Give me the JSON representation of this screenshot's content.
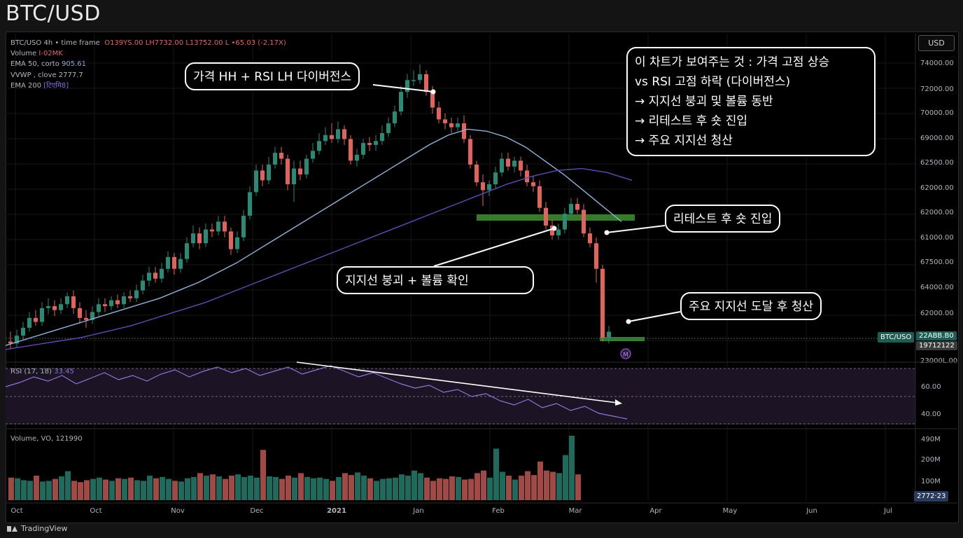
{
  "page_title": "BTC/USD",
  "legend": {
    "symbol_line": "BTC/USO  4h  • time frame",
    "ohlc": "O139YS.00  LH7732.00  L13752.00  L •65.03 (-2.17X)",
    "volume_name": "Volume",
    "volume_val": "I-02MK",
    "ema50_name": "EMA 50, corto",
    "ema50_val": "905.61",
    "vwap_name": "VVWP , clove",
    "vwap_val": "2777.7",
    "ema200_name": "EMA 200",
    "ema200_val": "[टिएमि8]"
  },
  "currency_button": "USD",
  "price_tag": {
    "symbol": "BTC/USO",
    "price": "22ABB.B0",
    "time": "19712122"
  },
  "rsi_panel": {
    "label": "RSI (17, 18)",
    "value": "33.45"
  },
  "volume_panel": {
    "label": "Volume, VO, 121990",
    "tag": "2772·23"
  },
  "marker": "M",
  "callouts": {
    "divergence": "가격 HH + RSI LH 다이버전스",
    "summary_lines": [
      "이 차트가 보여주는 것 : 가격 고점 상승",
      "vs RSI 고점 하락 (다이버전스)",
      "→ 지지선 붕괴 및 볼륨 동반",
      "→ 리테스트 후 숏 진입",
      "→ 주요 지지선 청산"
    ],
    "retest": "리테스트 후 숏 진입",
    "breakdown": "지지선 붕괴 + 볼륨 확인",
    "target": "주요 지지선 도달 후 청산"
  },
  "footer": {
    "brand": "TradingView"
  },
  "colors": {
    "up": "#2a8a73",
    "down": "#e0635d",
    "ema_light": "#8fb3d9",
    "ema_dark": "#5a4fb0",
    "rsi": "#8a78d8",
    "support": "#3f8f33"
  },
  "chart_data": {
    "type": "candlestick",
    "title": "BTC/USD",
    "x_tick_labels": [
      "Oct",
      "Oct",
      "Nov",
      "Dec",
      "2021",
      "Jan",
      "Feb",
      "Mar",
      "Apr",
      "May",
      "Jun",
      "Jul"
    ],
    "price_axis_labels": [
      "74000.00",
      "72000.00",
      "70000.00",
      "69000.00",
      "62500.00",
      "62000.00",
      "62000.00",
      "61000.00",
      "67500.00",
      "64000.00",
      "62000.00",
      "64000.00",
      "23000L.00"
    ],
    "rsi_axis_labels": [
      "60.00",
      "40.00"
    ],
    "volume_axis_labels": [
      "490M",
      "200M",
      "100M"
    ],
    "candles_approx_price": [
      [
        59800,
        59700,
        60300,
        59400
      ],
      [
        59700,
        60100,
        60400,
        59500
      ],
      [
        60100,
        60500,
        60800,
        59900
      ],
      [
        60500,
        61000,
        61300,
        60300
      ],
      [
        61000,
        60800,
        61400,
        60600
      ],
      [
        60800,
        61500,
        61800,
        60600
      ],
      [
        61500,
        61600,
        62000,
        61200
      ],
      [
        61600,
        61400,
        61900,
        61100
      ],
      [
        61400,
        61700,
        62000,
        61200
      ],
      [
        61700,
        62100,
        62300,
        61500
      ],
      [
        62100,
        61500,
        62400,
        61200
      ],
      [
        61500,
        61000,
        61800,
        60700
      ],
      [
        61000,
        60900,
        61400,
        60500
      ],
      [
        60900,
        61300,
        61600,
        60700
      ],
      [
        61300,
        61700,
        62000,
        61100
      ],
      [
        61700,
        61600,
        62000,
        61300
      ],
      [
        61600,
        61900,
        62100,
        61400
      ],
      [
        61900,
        61700,
        62200,
        61500
      ],
      [
        61700,
        62100,
        62300,
        61500
      ],
      [
        62100,
        62000,
        62400,
        61800
      ],
      [
        62000,
        62400,
        62700,
        61800
      ],
      [
        62400,
        62900,
        63200,
        62200
      ],
      [
        62900,
        63300,
        63600,
        62600
      ],
      [
        63300,
        63000,
        63600,
        62800
      ],
      [
        63000,
        63500,
        63800,
        62800
      ],
      [
        63500,
        64100,
        64400,
        63300
      ],
      [
        64100,
        63500,
        64300,
        63200
      ],
      [
        63500,
        64000,
        64300,
        63300
      ],
      [
        64000,
        64800,
        65100,
        63800
      ],
      [
        64800,
        65300,
        65700,
        64600
      ],
      [
        65300,
        64800,
        65600,
        64500
      ],
      [
        64800,
        65500,
        65800,
        64600
      ],
      [
        65500,
        65400,
        65800,
        65100
      ],
      [
        65400,
        65900,
        66200,
        65200
      ],
      [
        65900,
        65400,
        66200,
        65100
      ],
      [
        65400,
        64500,
        65600,
        64200
      ],
      [
        64500,
        65100,
        65400,
        64300
      ],
      [
        65100,
        66200,
        66500,
        64900
      ],
      [
        66200,
        67400,
        67700,
        66000
      ],
      [
        67400,
        68500,
        68800,
        67200
      ],
      [
        68500,
        68000,
        68800,
        67700
      ],
      [
        68000,
        68800,
        69200,
        67800
      ],
      [
        68800,
        69400,
        69700,
        68600
      ],
      [
        69400,
        69100,
        69700,
        68800
      ],
      [
        69100,
        67800,
        69300,
        67500
      ],
      [
        67800,
        68600,
        69000,
        66900
      ],
      [
        68600,
        68300,
        69000,
        68000
      ],
      [
        68300,
        69100,
        69300,
        68100
      ],
      [
        69100,
        69500,
        69900,
        68900
      ],
      [
        69500,
        70000,
        70400,
        69300
      ],
      [
        70000,
        70300,
        70700,
        69800
      ],
      [
        70300,
        70100,
        70900,
        69900
      ],
      [
        70100,
        70600,
        71000,
        69900
      ],
      [
        70600,
        70100,
        70800,
        69800
      ],
      [
        70100,
        69000,
        70300,
        68800
      ],
      [
        69000,
        69300,
        69600,
        68700
      ],
      [
        69300,
        69900,
        70100,
        69100
      ],
      [
        69900,
        69800,
        70200,
        69500
      ],
      [
        69800,
        70000,
        70300,
        69500
      ],
      [
        70000,
        70400,
        70800,
        69800
      ],
      [
        70400,
        70900,
        71200,
        70200
      ],
      [
        70900,
        71500,
        71800,
        70700
      ],
      [
        71500,
        72500,
        72800,
        71300
      ],
      [
        72500,
        73100,
        73400,
        72200
      ],
      [
        73100,
        73100,
        73600,
        72800
      ],
      [
        73100,
        73400,
        73900,
        72900
      ],
      [
        73400,
        72500,
        73600,
        72300
      ],
      [
        72500,
        71700,
        72800,
        71400
      ],
      [
        71700,
        71100,
        72000,
        70900
      ],
      [
        71100,
        70900,
        71400,
        70600
      ],
      [
        70900,
        70700,
        71200,
        70400
      ],
      [
        70700,
        70900,
        71200,
        70500
      ],
      [
        70900,
        70100,
        71300,
        69900
      ],
      [
        70100,
        68800,
        70300,
        68600
      ],
      [
        68800,
        67900,
        69000,
        67700
      ],
      [
        67900,
        67500,
        68300,
        66700
      ],
      [
        67500,
        67800,
        68000,
        67200
      ],
      [
        67800,
        68400,
        68700,
        67600
      ],
      [
        68400,
        69100,
        69400,
        68200
      ],
      [
        69100,
        68700,
        69400,
        68500
      ],
      [
        68700,
        69000,
        69200,
        68400
      ],
      [
        69000,
        68500,
        69200,
        68200
      ],
      [
        68500,
        67900,
        68800,
        67700
      ],
      [
        67900,
        67700,
        68200,
        67400
      ],
      [
        67700,
        66600,
        68000,
        66400
      ],
      [
        66600,
        65700,
        66900,
        65500
      ],
      [
        65700,
        65200,
        66000,
        65000
      ],
      [
        65200,
        65500,
        65800,
        65000
      ],
      [
        65500,
        66300,
        66600,
        65300
      ],
      [
        66300,
        66800,
        67100,
        66100
      ],
      [
        66800,
        66500,
        67100,
        66300
      ],
      [
        66500,
        65300,
        66800,
        65100
      ],
      [
        65300,
        64800,
        65600,
        64600
      ],
      [
        64800,
        63500,
        65100,
        62800
      ],
      [
        63500,
        60000,
        63700,
        59800
      ],
      [
        60000,
        60300,
        60600,
        59700
      ]
    ],
    "ema_light_approx": [
      59600,
      59900,
      60200,
      60500,
      60800,
      61100,
      61400,
      61700,
      62000,
      62400,
      62800,
      63300,
      63800,
      64400,
      65000,
      65600,
      66200,
      66800,
      67400,
      68000,
      68600,
      69200,
      69800,
      70300,
      70600,
      70500,
      70200,
      69700,
      69000,
      68300,
      67500,
      66700,
      65900
    ],
    "ema_dark_approx": [
      59400,
      59600,
      59800,
      60000,
      60300,
      60600,
      61000,
      61400,
      61800,
      62300,
      62800,
      63300,
      63800,
      64300,
      64800,
      65300,
      65800,
      66300,
      66800,
      67300,
      67800,
      68200,
      68500,
      68600,
      68400,
      68000
    ],
    "rsi_approx": [
      56,
      59,
      63,
      60,
      64,
      58,
      62,
      66,
      61,
      64,
      60,
      65,
      68,
      63,
      67,
      70,
      66,
      69,
      64,
      67,
      70,
      65,
      68,
      71,
      67,
      63,
      66,
      62,
      58,
      55,
      57,
      52,
      54,
      49,
      51,
      46,
      43,
      47,
      41,
      44,
      39,
      42,
      37,
      35,
      33
    ],
    "volume_relative": [
      0.35,
      0.34,
      0.31,
      0.3,
      0.38,
      0.29,
      0.3,
      0.33,
      0.37,
      0.45,
      0.3,
      0.28,
      0.31,
      0.33,
      0.35,
      0.32,
      0.3,
      0.34,
      0.33,
      0.35,
      0.31,
      0.3,
      0.38,
      0.34,
      0.36,
      0.33,
      0.3,
      0.29,
      0.34,
      0.36,
      0.42,
      0.38,
      0.4,
      0.37,
      0.33,
      0.38,
      0.4,
      0.36,
      0.38,
      0.35,
      0.78,
      0.37,
      0.36,
      0.33,
      0.38,
      0.35,
      0.42,
      0.36,
      0.34,
      0.35,
      0.33,
      0.3,
      0.36,
      0.42,
      0.39,
      0.43,
      0.38,
      0.34,
      0.3,
      0.33,
      0.34,
      0.35,
      0.4,
      0.38,
      0.46,
      0.42,
      0.35,
      0.3,
      0.34,
      0.33,
      0.37,
      0.36,
      0.32,
      0.33,
      0.42,
      0.46,
      0.35,
      0.8,
      0.44,
      0.38,
      0.32,
      0.38,
      0.45,
      0.39,
      0.6,
      0.46,
      0.44,
      0.42,
      0.7,
      1.0,
      0.4
    ]
  }
}
